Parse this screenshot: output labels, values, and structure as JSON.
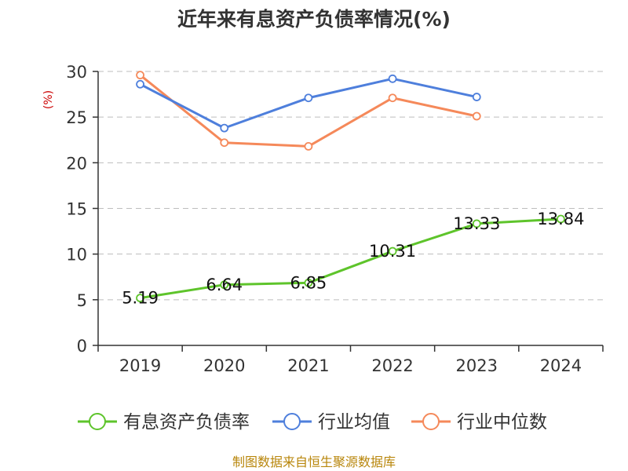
{
  "chart_data": {
    "type": "line",
    "title": "近年来有息资产负债率情况(%)",
    "ylabel": "(%)",
    "categories": [
      "2019",
      "2020",
      "2021",
      "2022",
      "2023",
      "2024"
    ],
    "ylim": [
      0,
      30
    ],
    "yticks": [
      0,
      5,
      10,
      15,
      20,
      25,
      30
    ],
    "grid": true,
    "legend_position": "bottom",
    "series": [
      {
        "name": "有息资产负债率",
        "color": "#5ec42b",
        "values": [
          5.19,
          6.64,
          6.85,
          10.31,
          13.33,
          13.84
        ],
        "labels": [
          "5.19",
          "6.64",
          "6.85",
          "10.31",
          "13.33",
          "13.84"
        ]
      },
      {
        "name": "行业均值",
        "color": "#4e7fdc",
        "values": [
          28.6,
          23.8,
          27.1,
          29.2,
          27.2,
          null
        ]
      },
      {
        "name": "行业中位数",
        "color": "#f5895a",
        "values": [
          29.6,
          22.2,
          21.8,
          27.1,
          25.1,
          null
        ]
      }
    ],
    "source": "制图数据来自恒生聚源数据库",
    "ylabel_color": "#cc0000",
    "source_color": "#b8860b"
  }
}
